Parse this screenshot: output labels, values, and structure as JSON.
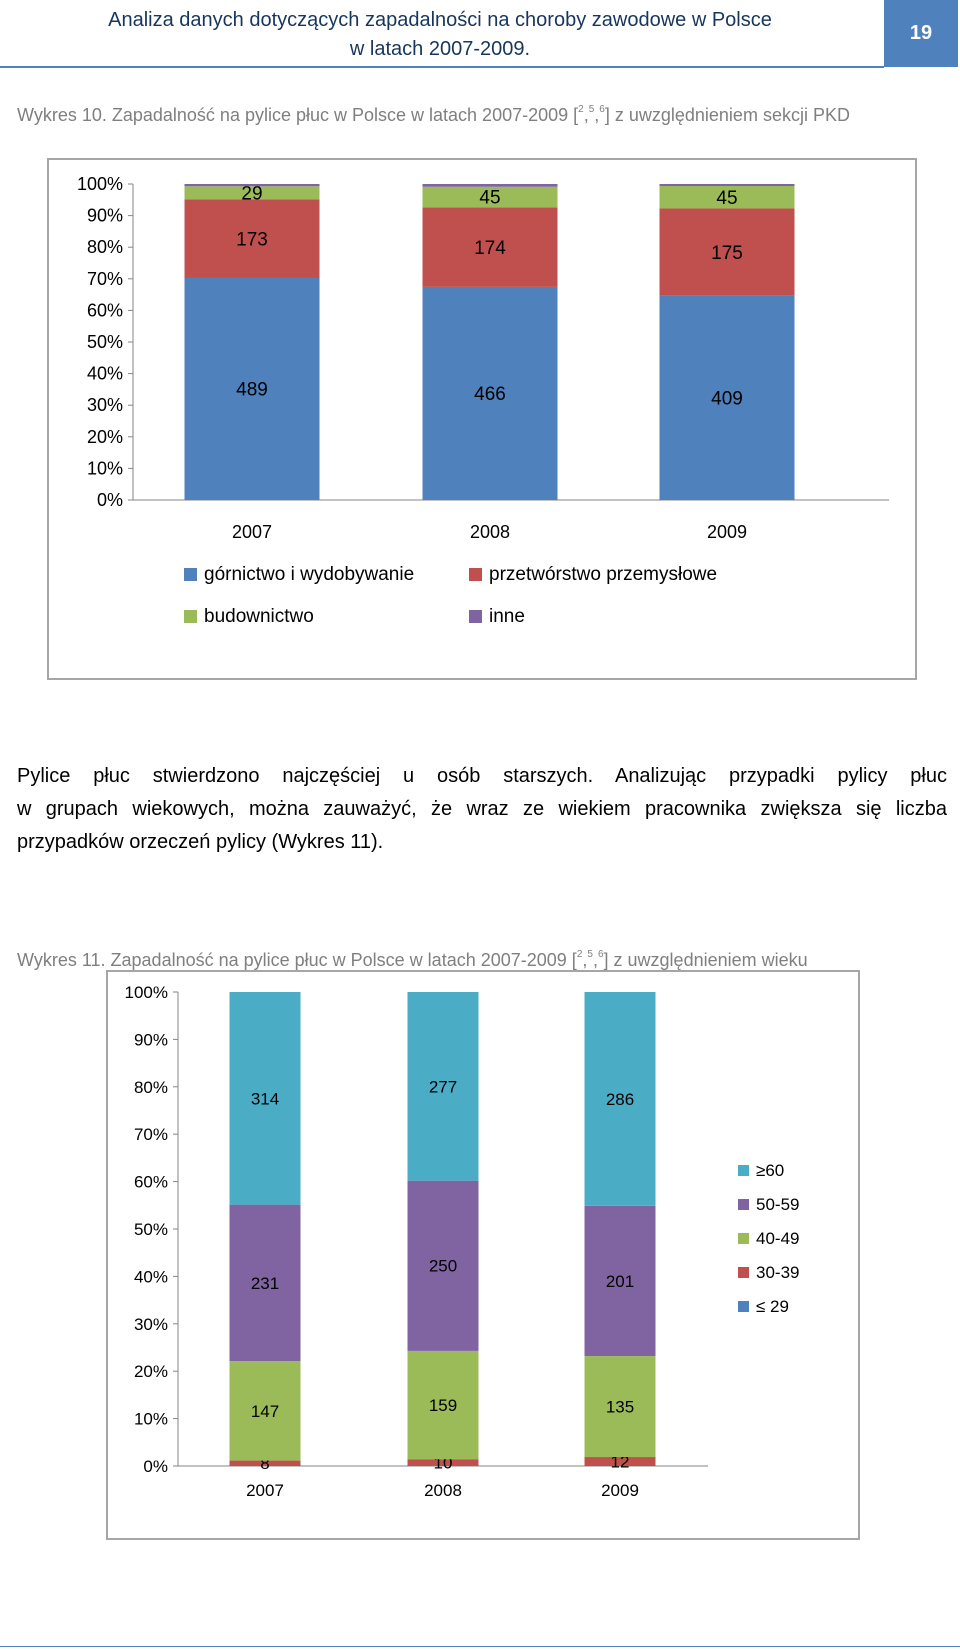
{
  "header": {
    "title_line1": "Analiza danych dotyczących zapadalności na choroby zawodowe w Polsce",
    "title_line2": "w latach 2007-2009.",
    "page_number": "19"
  },
  "caption1": {
    "text": "Wykres 10. Zapadalność na pylice płuc w Polsce w latach 2007-2009 [",
    "refs": [
      "2",
      "5",
      "6"
    ],
    "suffix": "] z uwzględnieniem sekcji PKD"
  },
  "caption2": {
    "text": "Wykres 11. Zapadalność na pylice płuc w Polsce w latach 2007-2009 [",
    "refs": [
      "2",
      "5",
      "6"
    ],
    "suffix": "] z uwzględnieniem wieku"
  },
  "paragraph": {
    "line1": "Pylice płuc stwierdzono najczęściej u osób starszych. Analizując przypadki pylicy płuc",
    "line2": "w grupach wiekowych, można zauważyć, że wraz ze wiekiem pracownika zwiększa się liczba",
    "line3": "przypadków orzeczeń pylicy (Wykres 11)."
  },
  "chart_data": [
    {
      "type": "bar",
      "stacked": "percent",
      "categories": [
        "2007",
        "2008",
        "2009"
      ],
      "series": [
        {
          "name": "górnictwo i wydobywanie",
          "values": [
            489,
            466,
            409
          ],
          "color": "#4f81bd"
        },
        {
          "name": "przetwórstwo przemysłowe",
          "values": [
            173,
            174,
            175
          ],
          "color": "#c0504d"
        },
        {
          "name": "budownictwo",
          "values": [
            29,
            45,
            45
          ],
          "color": "#9bbb59"
        },
        {
          "name": "inne",
          "values": [
            5,
            6,
            4
          ],
          "color": "#8064a2",
          "label_shown": false
        }
      ],
      "yticks": [
        "0%",
        "10%",
        "20%",
        "30%",
        "40%",
        "50%",
        "60%",
        "70%",
        "80%",
        "90%",
        "100%"
      ],
      "ylim": [
        0,
        100
      ],
      "legend": "bottom",
      "grid": false
    },
    {
      "type": "bar",
      "stacked": "percent",
      "categories": [
        "2007",
        "2008",
        "2009"
      ],
      "series": [
        {
          "name": "≤ 29",
          "values": [
            0,
            0,
            0
          ],
          "color": "#4f81bd",
          "label_shown": false
        },
        {
          "name": "30-39",
          "values": [
            8,
            10,
            12
          ],
          "color": "#c0504d"
        },
        {
          "name": "40-49",
          "values": [
            147,
            159,
            135
          ],
          "color": "#9bbb59"
        },
        {
          "name": "50-59",
          "values": [
            231,
            250,
            201
          ],
          "color": "#8064a2"
        },
        {
          "name": "≥60",
          "values": [
            314,
            277,
            286
          ],
          "color": "#4bacc6"
        }
      ],
      "yticks": [
        "0%",
        "10%",
        "20%",
        "30%",
        "40%",
        "50%",
        "60%",
        "70%",
        "80%",
        "90%",
        "100%"
      ],
      "ylim": [
        0,
        100
      ],
      "legend": "right",
      "grid": false
    }
  ]
}
